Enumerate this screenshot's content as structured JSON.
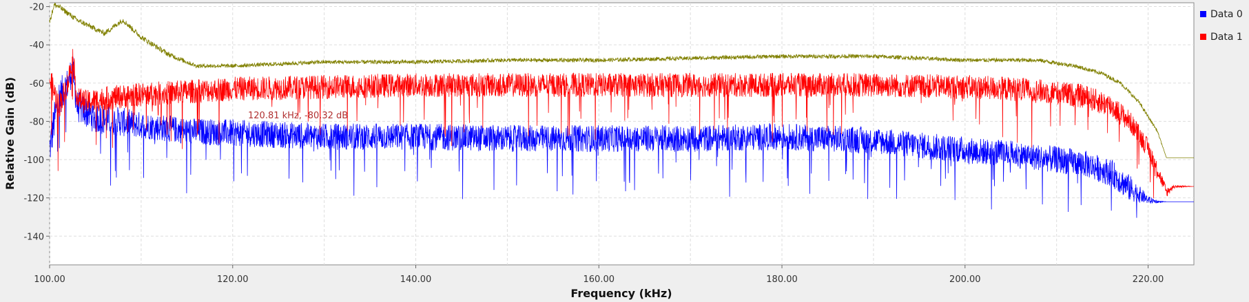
{
  "chart_data": {
    "type": "line",
    "xlabel": "Frequency (kHz)",
    "ylabel": "Relative Gain (dB)",
    "xlim": [
      100,
      225
    ],
    "ylim": [
      -155,
      -18
    ],
    "xticks": [
      100,
      120,
      140,
      160,
      180,
      200,
      220
    ],
    "xtick_labels": [
      "100.00",
      "120.00",
      "140.00",
      "160.00",
      "180.00",
      "200.00",
      "220.00"
    ],
    "yticks": [
      -20,
      -40,
      -60,
      -80,
      -100,
      -120,
      -140
    ],
    "yt_labels": [
      "-20",
      "-40",
      "-60",
      "-80",
      "-100",
      "-120",
      "-140"
    ],
    "grid": true,
    "legend_position": "right",
    "annotation": {
      "text": "120.81 kHz, -80.32 dB",
      "x": 120.81,
      "y": -80.32
    },
    "series": [
      {
        "name": "Data 0",
        "color": "#0000ff",
        "x": [
          100,
          100.5,
          101,
          102,
          102.5,
          103,
          105,
          110,
          115,
          120,
          130,
          140,
          150,
          160,
          170,
          180,
          190,
          200,
          205,
          210,
          213,
          216,
          218,
          220,
          221,
          222,
          225
        ],
        "y": [
          -95,
          -80,
          -68,
          -60,
          -52,
          -72,
          -78,
          -82,
          -85,
          -86,
          -88,
          -88,
          -89,
          -89,
          -89,
          -88,
          -90,
          -95,
          -97,
          -100,
          -102,
          -107,
          -115,
          -121,
          -122,
          -122,
          -122
        ],
        "noise": [
          14,
          14,
          14,
          12,
          12,
          12,
          12,
          10,
          10,
          10,
          10,
          10,
          10,
          10,
          10,
          10,
          10,
          10,
          10,
          10,
          10,
          10,
          10,
          3,
          1,
          0,
          0
        ]
      },
      {
        "name": "Data 1",
        "color": "#ff0000",
        "x": [
          100,
          100.5,
          101,
          102,
          102.5,
          103,
          104,
          106,
          110,
          120,
          130,
          140,
          150,
          160,
          170,
          180,
          190,
          200,
          205,
          210,
          213,
          216,
          218,
          220,
          221,
          222,
          223,
          225
        ],
        "y": [
          -58,
          -65,
          -72,
          -60,
          -45,
          -68,
          -70,
          -68,
          -66,
          -63,
          -62,
          -61,
          -61,
          -61,
          -61,
          -61,
          -61,
          -62,
          -63,
          -65,
          -67,
          -72,
          -80,
          -94,
          -105,
          -117,
          -114,
          -114
        ],
        "noise": [
          10,
          10,
          10,
          9,
          9,
          9,
          9,
          9,
          9,
          9,
          9,
          9,
          9,
          9,
          9,
          9,
          9,
          9,
          9,
          9,
          9,
          9,
          8,
          7,
          6,
          4,
          1,
          0
        ]
      },
      {
        "name": "",
        "color": "#808000",
        "x": [
          100,
          100.5,
          101,
          103,
          106,
          108,
          110,
          113,
          116,
          120,
          130,
          140,
          150,
          160,
          170,
          180,
          190,
          200,
          208,
          212,
          215,
          217,
          219,
          221,
          222,
          225
        ],
        "y": [
          -28,
          -19,
          -20,
          -27,
          -34,
          -27,
          -36,
          -45,
          -51,
          -51,
          -49,
          -49,
          -48,
          -48,
          -47,
          -46,
          -46,
          -48,
          -48,
          -51,
          -55,
          -60,
          -70,
          -85,
          -99,
          -99
        ],
        "noise": [
          2,
          2,
          2,
          2,
          2,
          2,
          2,
          2,
          1.5,
          1.5,
          1.5,
          1.5,
          1.5,
          1.5,
          1.5,
          1.5,
          1.5,
          1.5,
          1.5,
          1.5,
          1.5,
          1.5,
          1.5,
          1,
          0,
          0
        ]
      }
    ]
  }
}
